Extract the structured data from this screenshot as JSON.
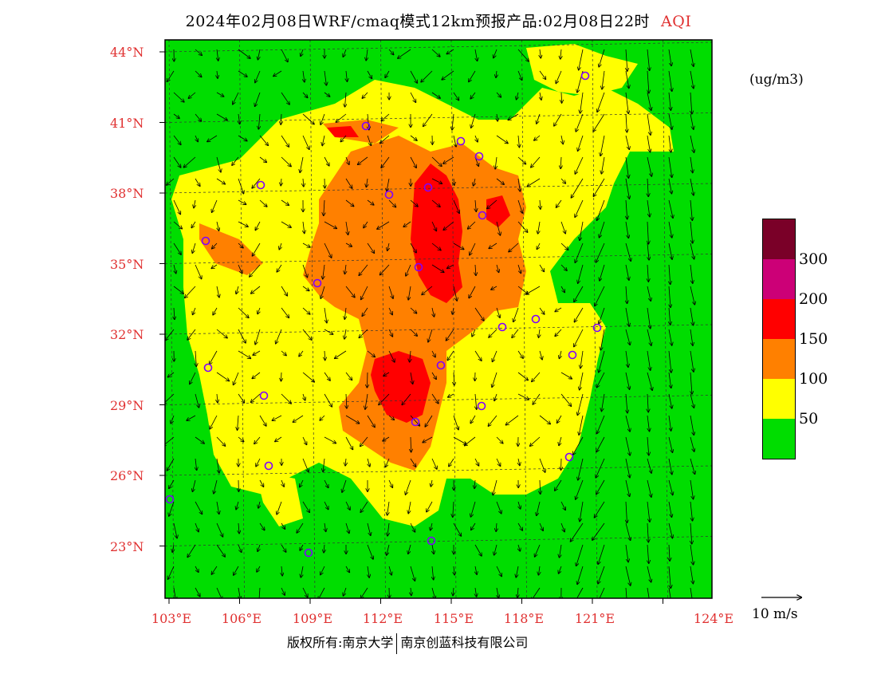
{
  "title": {
    "text": "2024年02月08日WRF/cmaq模式12km预报产品:02月08日22时",
    "variable": "AQI"
  },
  "map": {
    "lat_labels": [
      "44°N",
      "41°N",
      "38°N",
      "35°N",
      "32°N",
      "29°N",
      "26°N",
      "23°N"
    ],
    "lon_labels": [
      "103°E",
      "106°E",
      "109°E",
      "112°E",
      "115°E",
      "118°E",
      "121°E",
      "124°E"
    ],
    "latitudes": [
      44,
      41,
      38,
      35,
      32,
      29,
      26,
      23
    ],
    "longitudes": [
      103,
      106,
      109,
      112,
      115,
      118,
      121,
      124
    ],
    "colors": {
      "good": "#00dd00",
      "moderate": "#ffff00",
      "usg": "#ff8000",
      "unhealthy": "#ff0000",
      "very_unhealthy": "#cc0077",
      "hazardous": "#7a0028"
    }
  },
  "legend": {
    "unit": "(ug/m3)",
    "values": [
      "300",
      "200",
      "150",
      "100",
      "50"
    ],
    "swatches": [
      "#7a0028",
      "#cc0077",
      "#ff0000",
      "#ff8000",
      "#ffff00",
      "#00dd00"
    ]
  },
  "wind": {
    "reference_label": "10 m/s"
  },
  "copyright": {
    "owner1": "版权所有:南京大学",
    "owner2": "南京创蓝科技有限公司"
  }
}
